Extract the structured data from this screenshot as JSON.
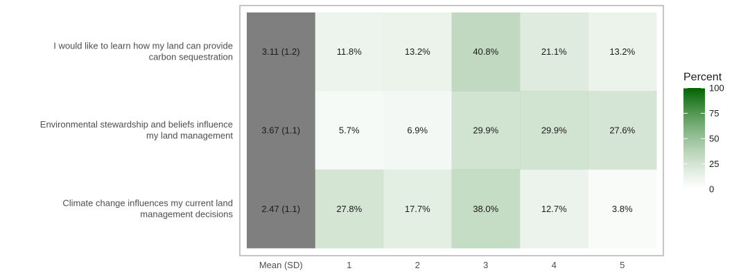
{
  "chart_data": {
    "type": "heatmap",
    "rows": [
      "I would like to learn how my land can provide carbon sequestration",
      "Environmental stewardship and beliefs influence my land management",
      "Climate change influences my current land management decisions"
    ],
    "row_label_lines": [
      [
        "I would like to learn how my land can provide",
        "carbon sequestration"
      ],
      [
        "Environmental stewardship and beliefs influence",
        "my land management"
      ],
      [
        "Climate change influences my current land",
        "management decisions"
      ]
    ],
    "columns": [
      "Mean (SD)",
      "1",
      "2",
      "3",
      "4",
      "5"
    ],
    "mean_sd": [
      "3.11 (1.2)",
      "3.67 (1.1)",
      "2.47 (1.1)"
    ],
    "values": [
      [
        11.8,
        13.2,
        40.8,
        21.1,
        13.2
      ],
      [
        5.7,
        6.9,
        29.9,
        29.9,
        27.6
      ],
      [
        27.8,
        17.7,
        38.0,
        12.7,
        3.8
      ]
    ],
    "value_labels": [
      [
        "11.8%",
        "13.2%",
        "40.8%",
        "21.1%",
        "13.2%"
      ],
      [
        "5.7%",
        "6.9%",
        "29.9%",
        "29.9%",
        "27.6%"
      ],
      [
        "27.8%",
        "17.7%",
        "38.0%",
        "12.7%",
        "3.8%"
      ]
    ],
    "legend": {
      "title": "Percent",
      "ticks": [
        0,
        25,
        50,
        75,
        100
      ],
      "tick_labels": [
        "0",
        "25",
        "50",
        "75",
        "100"
      ],
      "range": [
        0,
        100
      ],
      "low_color": "#ffffff",
      "high_color": "#006400",
      "placement": "right"
    },
    "mean_column_color": "#7f7f7f",
    "cell_opacity": 0.6,
    "panel_border_color": "#b3b3b3",
    "grid": false
  }
}
